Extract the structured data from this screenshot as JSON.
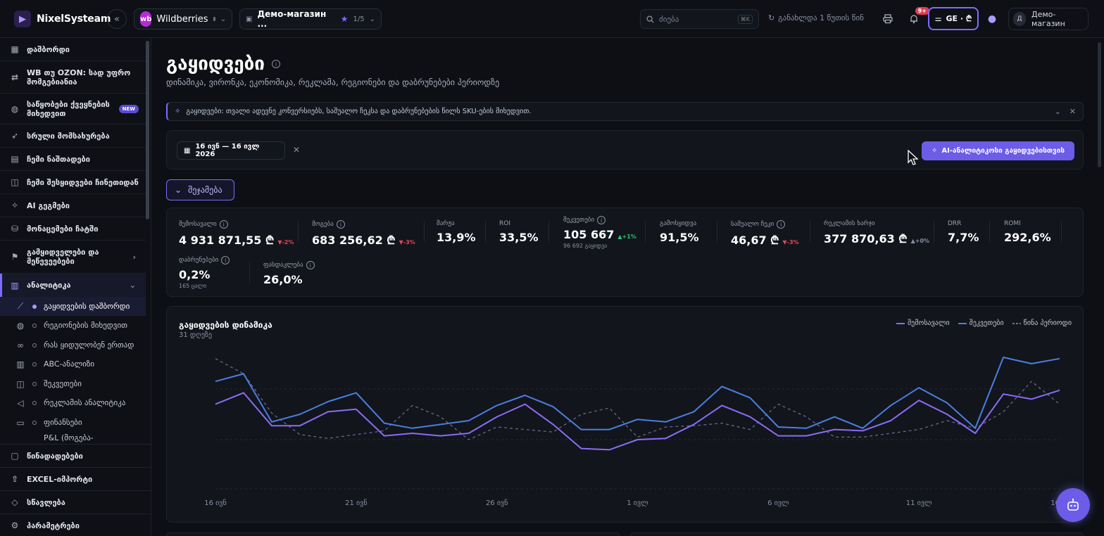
{
  "app": {
    "brand": "NixelSysteam",
    "marketplace": "Wildberries",
    "marketplace_logo": "wb",
    "store": "Демо-магазин ...",
    "store_count": "1/5",
    "search_placeholder": "ძიება",
    "search_shortcut": "⌘K",
    "updated": "განახლდა 1 წუთის წინ",
    "notifications_badge": "9+",
    "lang": "GE · ₾",
    "user_initial": "Д",
    "user_name": "Демо-магазин"
  },
  "sidebar": {
    "items": [
      {
        "label": "დაშბორდი",
        "icon": "grid-icon"
      },
      {
        "label": "WB თუ OZON: სად უფრო მომგებიანია",
        "icon": "compare-icon"
      },
      {
        "label": "საწყობები ქვეყნების მიხედვით",
        "icon": "globe-icon",
        "badge": "NEW"
      },
      {
        "label": "სრული მომსახურება",
        "icon": "rocket-icon"
      },
      {
        "label": "ჩემი ნაშთადები",
        "icon": "file-icon"
      },
      {
        "label": "ჩემი შესყიდვები ჩინეთიდან",
        "icon": "bag-icon"
      },
      {
        "label": "AI გეგმები",
        "icon": "sparkle-icon"
      },
      {
        "label": "მონაცემები ჩატში",
        "icon": "database-icon"
      },
      {
        "label": "გამყიდველები და მეწევეებები",
        "icon": "sellers-icon"
      },
      {
        "label": "ანალიტიკა",
        "icon": "chart-icon"
      }
    ],
    "sub_items": [
      {
        "label": "გაყიდვების დაშბორდი",
        "icon": "line-chart-icon"
      },
      {
        "label": "რეგიონების მიხედვით",
        "icon": "globe-icon"
      },
      {
        "label": "რას ყიდულობენ ერთად",
        "icon": "link-icon"
      },
      {
        "label": "ABC-ანალიზი",
        "icon": "bar-icon"
      },
      {
        "label": "შეკვეთები",
        "icon": "bag-icon"
      },
      {
        "label": "რეკლამის ანალიტიკა",
        "icon": "megaphone-icon"
      },
      {
        "label": "ფინანსები",
        "icon": "wallet-icon"
      },
      {
        "label": "P&L (მოგება-",
        "icon": "doc-icon"
      }
    ],
    "bottom": [
      {
        "label": "წინადადებები",
        "icon": "message-icon"
      },
      {
        "label": "EXCEL-იმპორტი",
        "icon": "upload-icon"
      },
      {
        "label": "სწავლება",
        "icon": "cap-icon"
      },
      {
        "label": "პარამეტრები",
        "icon": "gear-icon"
      }
    ]
  },
  "page": {
    "title": "გაყიდვები",
    "subtitle": "დინამიკა, ვირონკა, ეკონომიკა, რეკლამა, რეგიონები და დაბრუნებები პერიოდზე",
    "hint": "გაყიდვები: თვალი ადევნე კონვერსიებს, საშუალო ჩეკსა და დაბრუნებების წილს SKU-ების მიხედვით.",
    "date_range": "16 ივნ — 16 ივლ 2026",
    "ai_button": "AI-ანალიტიკოსი გაყიდვებისთვის",
    "summary_button": "შეჯამება"
  },
  "kpis": [
    {
      "label": "შემოსავალი",
      "value": "4 931 871,55 ₾",
      "delta": "▼-2%",
      "dir": "down",
      "info": true
    },
    {
      "label": "მოგება",
      "value": "683 256,62 ₾",
      "delta": "▼-3%",
      "dir": "down",
      "info": true
    },
    {
      "label": "მარჟა",
      "value": "13,9%"
    },
    {
      "label": "ROI",
      "value": "33,5%"
    },
    {
      "label": "შეკვეთები",
      "value": "105 667",
      "delta": "▲+1%",
      "dir": "up",
      "sub": "96 692 გაყიდვა",
      "info": true
    },
    {
      "label": "გამოსყიდვა",
      "value": "91,5%"
    },
    {
      "label": "საშუალო ჩეკი",
      "value": "46,67 ₾",
      "delta": "▼-3%",
      "dir": "down",
      "info": true
    },
    {
      "label": "რეკლამის ხარჯი",
      "value": "377 870,63 ₾",
      "delta": "▲+0%",
      "dir": "neutral"
    },
    {
      "label": "DRR",
      "value": "7,7%"
    },
    {
      "label": "ROMI",
      "value": "292,6%"
    },
    {
      "label": "დაბრუნებები",
      "value": "0,2%",
      "sub": "165 ცალი",
      "info": true
    },
    {
      "label": "ფასდაკლება",
      "value": "26,0%",
      "info": true
    }
  ],
  "chart": {
    "title": "გაყიდვების დინამიკა",
    "subtitle": "31 დღეზე",
    "legend": [
      {
        "label": "შემოსავალი",
        "color": "#8b6cf6"
      },
      {
        "label": "შეკვეთები",
        "color": "#4a7fe0"
      },
      {
        "label": "წინა პერიოდი",
        "color": "#6b7090"
      }
    ]
  },
  "chart_data": {
    "type": "line",
    "title": "გაყიდვების დინამიკა",
    "x_ticks": [
      "16 ივნ",
      "21 ივნ",
      "26 ივნ",
      "1 ივლ",
      "6 ივლ",
      "11 ივლ",
      "16"
    ],
    "x": [
      "16 ივნ",
      "17 ივნ",
      "18 ივნ",
      "19 ივნ",
      "20 ივნ",
      "21 ივნ",
      "22 ივნ",
      "23 ივნ",
      "24 ივნ",
      "25 ივნ",
      "26 ივნ",
      "27 ივნ",
      "28 ივნ",
      "29 ივნ",
      "30 ივნ",
      "1 ივლ",
      "2 ივლ",
      "3 ივლ",
      "4 ივლ",
      "5 ივლ",
      "6 ივლ",
      "7 ივლ",
      "8 ივლ",
      "9 ივლ",
      "10 ივლ",
      "11 ივლ",
      "12 ივლ",
      "13 ივლ",
      "14 ივლ",
      "15 ივლ",
      "16 ივლ"
    ],
    "grid": true,
    "series": [
      {
        "name": "შემოსავალი",
        "color": "#8b6cf6",
        "values": [
          68,
          77,
          51,
          51,
          62,
          64,
          43,
          45,
          43,
          45,
          58,
          68,
          52,
          33,
          32,
          40,
          41,
          52,
          67,
          58,
          43,
          43,
          48,
          47,
          55,
          71,
          60,
          45,
          76,
          72,
          79
        ]
      },
      {
        "name": "შეკვეთები",
        "color": "#4a7fe0",
        "values": [
          86,
          92,
          54,
          60,
          70,
          77,
          53,
          49,
          52,
          55,
          67,
          75,
          66,
          48,
          48,
          56,
          54,
          62,
          82,
          73,
          50,
          49,
          58,
          49,
          67,
          81,
          69,
          49,
          105,
          100,
          104
        ]
      },
      {
        "name": "წინა პერიოდი",
        "color": "#6b7090",
        "dashed": true,
        "values": [
          104,
          92,
          61,
          44,
          41,
          44,
          47,
          67,
          58,
          40,
          50,
          48,
          46,
          60,
          65,
          42,
          50,
          51,
          53,
          48,
          68,
          58,
          42,
          42,
          45,
          48,
          55,
          49,
          62,
          86,
          68
        ]
      }
    ],
    "ylim": [
      0,
      120
    ]
  }
}
